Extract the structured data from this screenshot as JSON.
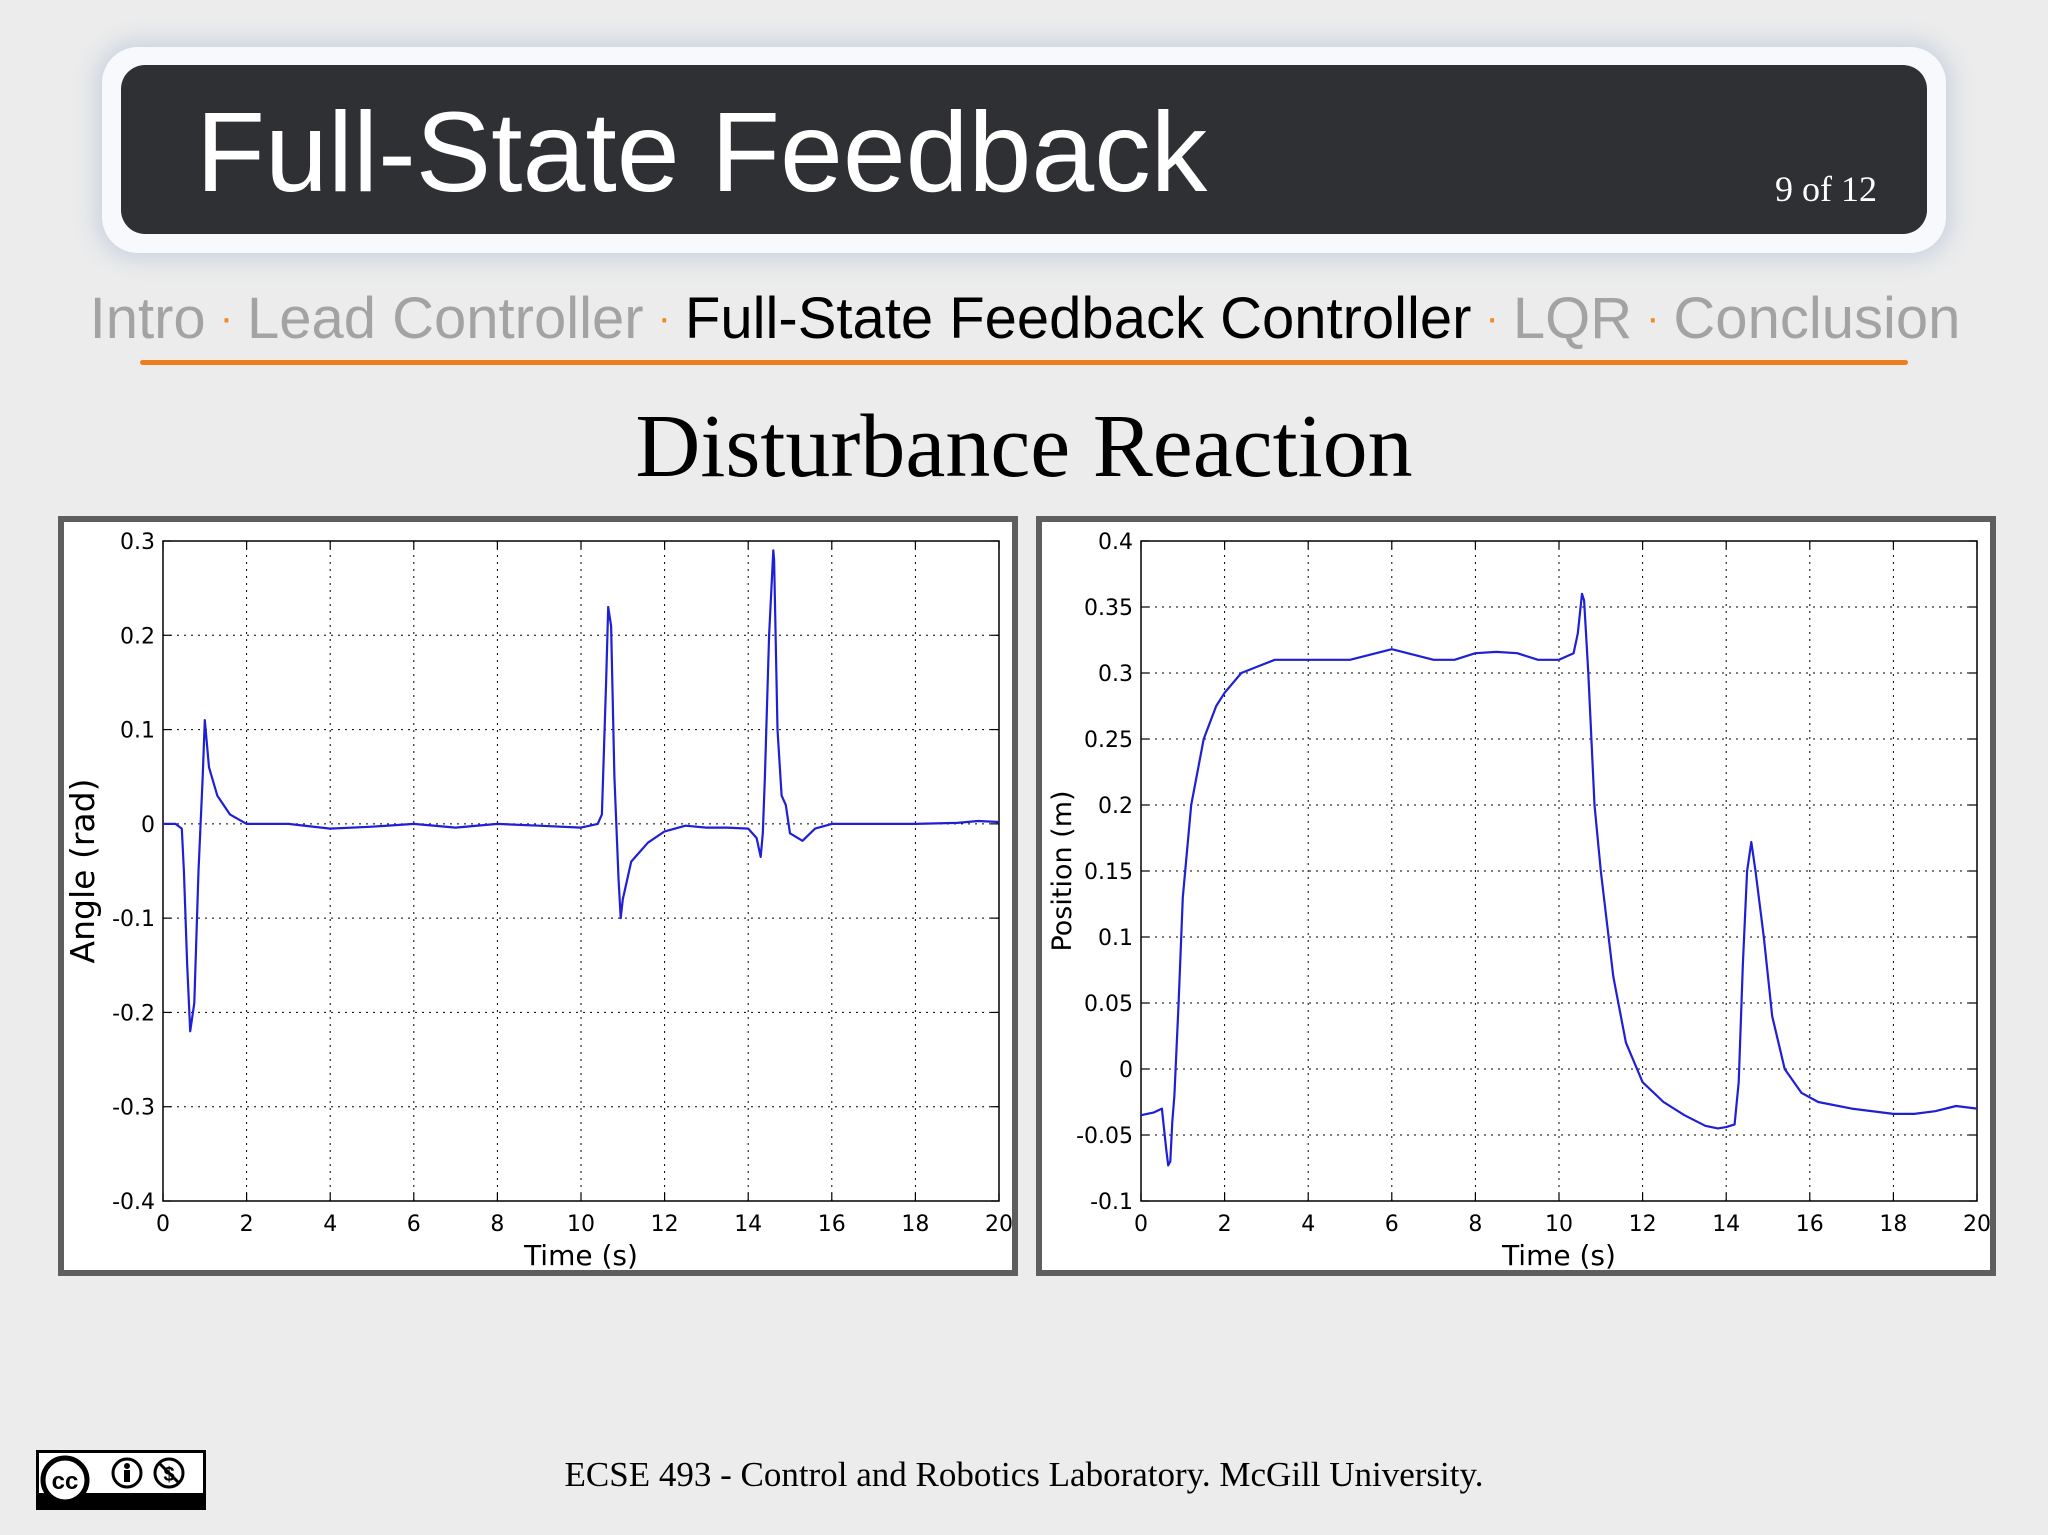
{
  "header": {
    "title": "Full-State Feedback",
    "slide_number": "9 of 12"
  },
  "nav": {
    "items": [
      {
        "label": "Intro",
        "active": false
      },
      {
        "label": "Lead Controller",
        "active": false
      },
      {
        "label": "Full-State Feedback Controller",
        "active": true
      },
      {
        "label": "LQR",
        "active": false
      },
      {
        "label": "Conclusion",
        "active": false
      }
    ],
    "separator": "·"
  },
  "main": {
    "heading": "Disturbance Reaction"
  },
  "footer": {
    "text": "ECSE 493 - Control and Robotics Laboratory. McGill University.",
    "license_icon": "cc-by-nc-icon"
  },
  "colors": {
    "title_bar": "#2f3034",
    "accent_line": "#ee7d1e",
    "nav_inactive": "#a3a3a3",
    "series": "#1f1fd6"
  },
  "chart_data": [
    {
      "type": "line",
      "title": "",
      "xlabel": "Time (s)",
      "ylabel": "Angle (rad)",
      "xlim": [
        0,
        20
      ],
      "ylim": [
        -0.4,
        0.3
      ],
      "xticks": [
        0,
        2,
        4,
        6,
        8,
        10,
        12,
        14,
        16,
        18,
        20
      ],
      "yticks": [
        -0.4,
        -0.3,
        -0.2,
        -0.1,
        0,
        0.1,
        0.2,
        0.3
      ],
      "ytick_labels": [
        "-0.4",
        "-0.3",
        "-0.2",
        "-0.1",
        "0",
        "0.1",
        "0.2",
        "0.3"
      ],
      "grid": true,
      "series": [
        {
          "color": "#1f1fd6",
          "x": [
            0,
            0.3,
            0.45,
            0.5,
            0.58,
            0.65,
            0.75,
            0.85,
            0.95,
            1.0,
            1.1,
            1.3,
            1.6,
            2.0,
            3.0,
            4.0,
            5.0,
            6.0,
            7.0,
            8.0,
            9.0,
            10.0,
            10.4,
            10.5,
            10.6,
            10.65,
            10.72,
            10.8,
            10.9,
            10.95,
            11.0,
            11.2,
            11.6,
            12.0,
            12.5,
            13.0,
            13.5,
            14.0,
            14.2,
            14.3,
            14.35,
            14.4,
            14.5,
            14.6,
            14.62,
            14.7,
            14.8,
            14.9,
            15.0,
            15.3,
            15.6,
            16.0,
            17.0,
            18.0,
            19.0,
            19.5,
            20.0
          ],
          "y": [
            0.0,
            0.0,
            -0.005,
            -0.05,
            -0.15,
            -0.22,
            -0.19,
            -0.05,
            0.05,
            0.11,
            0.06,
            0.03,
            0.01,
            0.0,
            0.0,
            -0.005,
            -0.003,
            0.0,
            -0.004,
            0.0,
            -0.002,
            -0.004,
            0.0,
            0.01,
            0.15,
            0.23,
            0.21,
            0.05,
            -0.06,
            -0.1,
            -0.08,
            -0.04,
            -0.02,
            -0.008,
            -0.002,
            -0.004,
            -0.004,
            -0.005,
            -0.015,
            -0.035,
            -0.01,
            0.05,
            0.2,
            0.29,
            0.28,
            0.1,
            0.03,
            0.02,
            -0.01,
            -0.018,
            -0.005,
            0.0,
            0.0,
            0.0,
            0.001,
            0.003,
            0.002
          ]
        }
      ]
    },
    {
      "type": "line",
      "title": "",
      "xlabel": "Time (s)",
      "ylabel": "Position (m)",
      "xlim": [
        0,
        20
      ],
      "ylim": [
        -0.1,
        0.4
      ],
      "xticks": [
        0,
        2,
        4,
        6,
        8,
        10,
        12,
        14,
        16,
        18,
        20
      ],
      "yticks": [
        -0.1,
        -0.05,
        0,
        0.05,
        0.1,
        0.15,
        0.2,
        0.25,
        0.3,
        0.35,
        0.4
      ],
      "ytick_labels": [
        "-0.1",
        "-0.05",
        "0",
        "0.05",
        "0.1",
        "0.15",
        "0.2",
        "0.25",
        "0.3",
        "0.35",
        "0.4"
      ],
      "grid": true,
      "series": [
        {
          "color": "#1f1fd6",
          "x": [
            0,
            0.3,
            0.5,
            0.6,
            0.65,
            0.7,
            0.75,
            0.8,
            0.9,
            1.0,
            1.2,
            1.5,
            1.8,
            2.0,
            2.4,
            2.8,
            3.2,
            4.0,
            5.0,
            6.0,
            7.0,
            7.5,
            8.0,
            8.5,
            9.0,
            9.5,
            10.0,
            10.35,
            10.45,
            10.55,
            10.6,
            10.7,
            10.85,
            11.0,
            11.3,
            11.6,
            12.0,
            12.5,
            13.0,
            13.5,
            13.8,
            14.0,
            14.2,
            14.3,
            14.4,
            14.5,
            14.6,
            14.7,
            14.9,
            15.1,
            15.4,
            15.8,
            16.2,
            17.0,
            18.0,
            18.5,
            19.0,
            19.5,
            20.0
          ],
          "y": [
            -0.035,
            -0.033,
            -0.03,
            -0.06,
            -0.073,
            -0.07,
            -0.04,
            -0.02,
            0.05,
            0.13,
            0.2,
            0.25,
            0.275,
            0.285,
            0.3,
            0.305,
            0.31,
            0.31,
            0.31,
            0.318,
            0.31,
            0.31,
            0.315,
            0.316,
            0.315,
            0.31,
            0.31,
            0.315,
            0.33,
            0.36,
            0.355,
            0.3,
            0.2,
            0.15,
            0.07,
            0.02,
            -0.01,
            -0.025,
            -0.035,
            -0.043,
            -0.045,
            -0.044,
            -0.042,
            -0.01,
            0.08,
            0.15,
            0.172,
            0.15,
            0.1,
            0.04,
            0.0,
            -0.018,
            -0.025,
            -0.03,
            -0.034,
            -0.034,
            -0.032,
            -0.028,
            -0.03
          ]
        }
      ]
    }
  ]
}
